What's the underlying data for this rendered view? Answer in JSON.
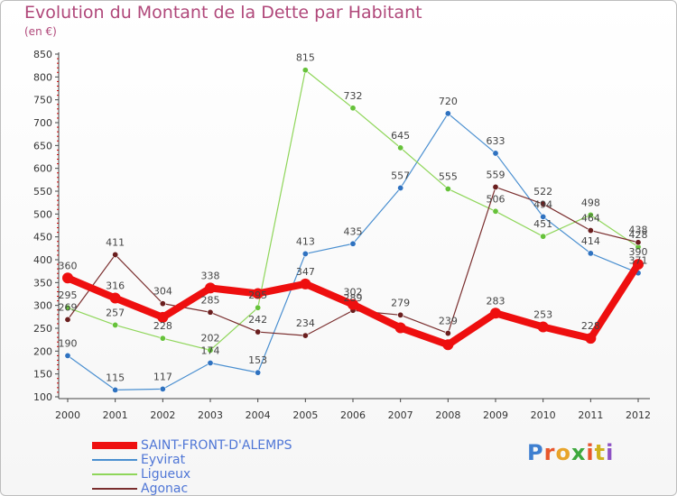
{
  "title": "Evolution du Montant de la Dette par Habitant",
  "subtitle": "(en €)",
  "logo": [
    "P",
    "r",
    "o",
    "x",
    "i",
    "t",
    "i"
  ],
  "logo_colors": [
    "#3e7fd0",
    "#e8562b",
    "#e8a42b",
    "#3ea83e",
    "#e8562b",
    "#d0b21e",
    "#8e52c4"
  ],
  "chart_data": {
    "type": "line",
    "x": [
      "2000",
      "2001",
      "2002",
      "2003",
      "2004",
      "2005",
      "2006",
      "2007",
      "2008",
      "2009",
      "2010",
      "2011",
      "2012"
    ],
    "ylim": [
      100,
      850
    ],
    "yticks": [
      100,
      150,
      200,
      250,
      300,
      350,
      400,
      450,
      500,
      550,
      600,
      650,
      700,
      750,
      800,
      850
    ],
    "grid": false,
    "legend_position": "bottom-left",
    "series": [
      {
        "name": "Eyvirat",
        "color": "#4a8fd0",
        "marker": "#2f72c0",
        "width": 1.2,
        "values": [
          190,
          115,
          117,
          174,
          153,
          413,
          435,
          557,
          720,
          633,
          494,
          414,
          371
        ],
        "labels": [
          "190",
          "115",
          "117",
          "174",
          "153",
          "413",
          "435",
          "557",
          "720",
          "633",
          "494",
          "414",
          "371"
        ]
      },
      {
        "name": "Ligueux",
        "color": "#8fd65a",
        "marker": "#66c23a",
        "width": 1.2,
        "values": [
          295,
          257,
          228,
          202,
          295,
          815,
          732,
          645,
          555,
          506,
          451,
          498,
          428
        ],
        "labels": [
          "295",
          "257",
          "228",
          "202",
          "295",
          "815",
          "732",
          "645",
          "555",
          "506",
          "451",
          "498",
          "428"
        ]
      },
      {
        "name": "Agonac",
        "color": "#7a2e2e",
        "marker": "#6a1e1e",
        "width": 1.2,
        "values": [
          269,
          411,
          304,
          285,
          242,
          234,
          289,
          279,
          239,
          559,
          522,
          464,
          438
        ],
        "labels": [
          "269",
          "411",
          "304",
          "285",
          "242",
          "234",
          "289",
          "279",
          "239",
          "559",
          "522",
          "464",
          "438"
        ]
      },
      {
        "name": "SAINT-FRONT-D'ALEMPS",
        "color": "#ee0f0f",
        "marker": "#ee0f0f",
        "width": 8,
        "values": [
          360,
          316,
          274,
          338,
          326,
          347,
          302,
          251,
          214,
          283,
          253,
          228,
          390
        ],
        "labels": [
          "360",
          "316",
          "",
          "338",
          "",
          "347",
          "302",
          "",
          "",
          "283",
          "253",
          "228",
          "390"
        ]
      }
    ]
  }
}
